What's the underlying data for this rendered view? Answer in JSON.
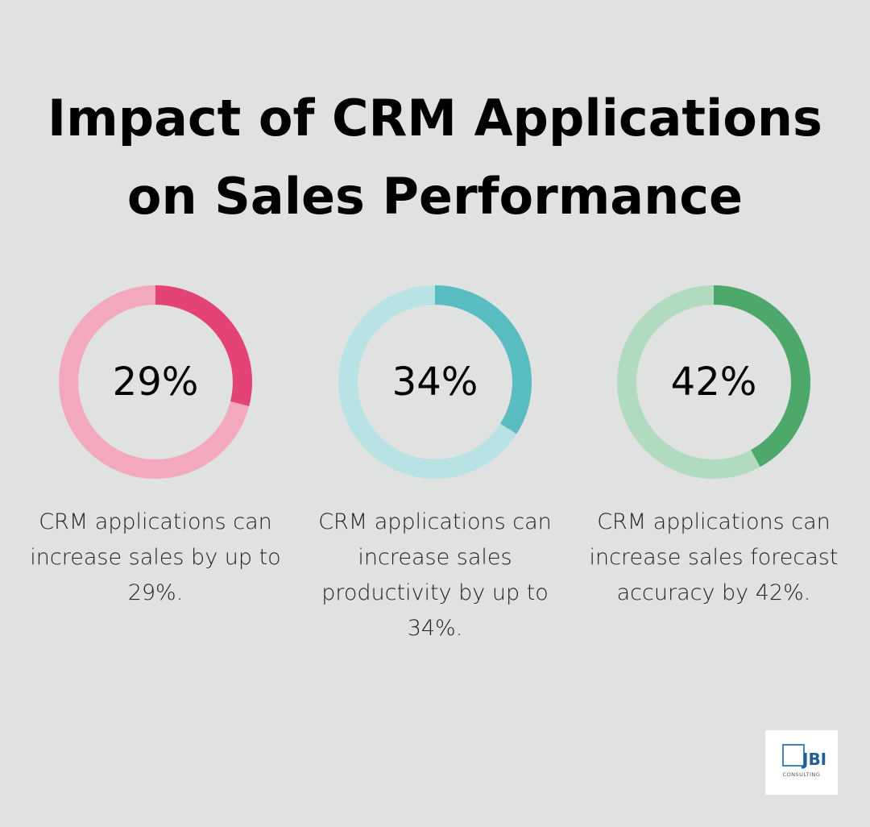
{
  "title": {
    "line1": "Impact of CRM Applications",
    "line2": "on Sales Performance"
  },
  "chart_data": [
    {
      "type": "pie",
      "variant": "donut",
      "values": [
        29,
        71
      ],
      "label": "29%",
      "description": "CRM applications can increase sales by up to 29%.",
      "colors": {
        "fill": "#e34375",
        "track": "#f3a8be"
      }
    },
    {
      "type": "pie",
      "variant": "donut",
      "values": [
        34,
        66
      ],
      "label": "34%",
      "description": "CRM applications can increase sales productivity by up to 34%.",
      "colors": {
        "fill": "#59bcc0",
        "track": "#b9e2e4"
      }
    },
    {
      "type": "pie",
      "variant": "donut",
      "values": [
        42,
        58
      ],
      "label": "42%",
      "description": "CRM applications can increase sales forecast accuracy by 42%.",
      "colors": {
        "fill": "#4ca96b",
        "track": "#b0dbbf"
      }
    }
  ],
  "logo": {
    "text": "JBI",
    "subtext": "CONSULTING",
    "color": "#1f5f95"
  }
}
